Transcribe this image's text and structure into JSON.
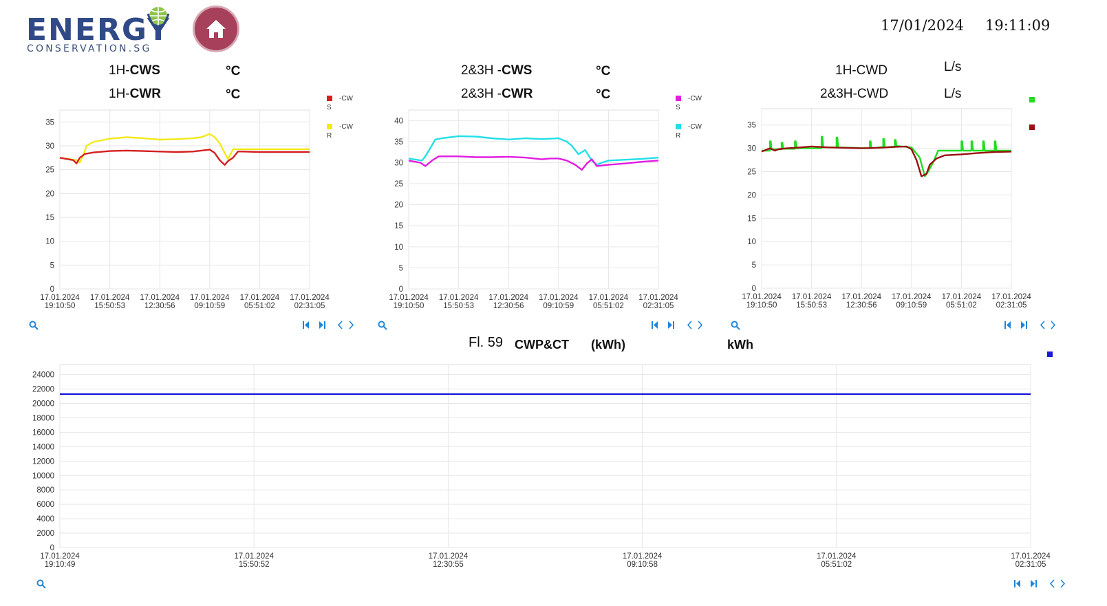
{
  "header": {
    "logo_word": "ENERGY",
    "logo_sub": "CONSERVATION.SG",
    "date": "17/01/2024",
    "time": "19:11:09",
    "icons": {
      "home": "home-icon",
      "globe": "globe-icon"
    }
  },
  "panels": {
    "p1": {
      "title1_prefix": "1H-",
      "title1_bold": "CWS",
      "unit1": "°C",
      "title2_prefix": "1H-",
      "title2_bold": "CWR",
      "unit2": "°C",
      "legend": [
        {
          "label": "-CW",
          "sub": "S",
          "color": "#d42020"
        },
        {
          "label": "-CW",
          "sub": "R",
          "color": "#f2ea1b"
        }
      ]
    },
    "p2": {
      "title1_prefix": "2&3H -",
      "title1_bold": "CWS",
      "unit1": "°C",
      "title2_prefix": "2&3H -",
      "title2_bold": "CWR",
      "unit2": "°C",
      "legend": [
        {
          "label": "-CW",
          "sub": "S",
          "color": "#e21ce2"
        },
        {
          "label": "-CW",
          "sub": "R",
          "color": "#22e0e8"
        }
      ]
    },
    "p3": {
      "title1": "1H-CWD",
      "unit1": "L/s",
      "title2": "2&3H-CWD",
      "unit2": "L/s",
      "legend": [
        {
          "label": "",
          "color": "#22dd22"
        },
        {
          "label": "",
          "color": "#9a1010"
        }
      ]
    },
    "bottom": {
      "title_a": "Fl. 59",
      "title_b": "CWP&CT",
      "title_c": "(kWh)",
      "unit": "kWh",
      "legend": [
        {
          "label": "",
          "color": "#1a1ad8"
        }
      ]
    }
  },
  "controls": {
    "icons": [
      "zoom-icon",
      "first-page-icon",
      "last-page-icon",
      "prev-icon",
      "next-icon"
    ]
  },
  "chart_data": [
    {
      "type": "line",
      "y_ticks": [
        "0",
        "5",
        "10",
        "15",
        "20",
        "25",
        "30",
        "35"
      ],
      "ylim": [
        0,
        37.5
      ],
      "x_ticks": [
        {
          "d": "17.01.2024",
          "t": "19:10:50"
        },
        {
          "d": "17.01.2024",
          "t": "15:50:53"
        },
        {
          "d": "17.01.2024",
          "t": "12:30:56"
        },
        {
          "d": "17.01.2024",
          "t": "09:10:59"
        },
        {
          "d": "17.01.2024",
          "t": "05:51:02"
        },
        {
          "d": "17.01.2024",
          "t": "02:31:05"
        }
      ],
      "x_ticks_value": [
        0,
        3,
        6,
        9,
        12,
        15
      ],
      "x_unit": "hours before 19:10:50",
      "series": [
        {
          "color": "#f2ea1b",
          "x": [
            0,
            1,
            1.2,
            1.4,
            1.6,
            2,
            3,
            4,
            5,
            6,
            7,
            8,
            8.5,
            9,
            9.3,
            9.6,
            9.9,
            10.1,
            10.4,
            11,
            12,
            13,
            14,
            15
          ],
          "values": [
            27.5,
            27,
            26.5,
            28,
            30,
            30.8,
            31.5,
            31.8,
            31.6,
            31.3,
            31.4,
            31.6,
            31.8,
            32.5,
            31.8,
            30.5,
            28.5,
            27.2,
            29.3,
            29.3,
            29.3,
            29.3,
            29.3,
            29.3
          ]
        },
        {
          "color": "#d42020",
          "x": [
            0,
            0.8,
            1,
            1.2,
            1.5,
            2,
            3,
            4,
            5,
            6,
            7,
            8,
            8.5,
            9,
            9.3,
            9.6,
            9.9,
            10.1,
            10.4,
            10.7,
            11,
            12,
            13,
            14,
            15
          ],
          "values": [
            27.5,
            27,
            26.3,
            27.5,
            28.3,
            28.6,
            28.9,
            29,
            28.9,
            28.8,
            28.7,
            28.8,
            29,
            29.2,
            28.5,
            27,
            26,
            26.8,
            27.5,
            28.8,
            28.8,
            28.7,
            28.7,
            28.7,
            28.7
          ]
        }
      ]
    },
    {
      "type": "line",
      "y_ticks": [
        "0",
        "5",
        "10",
        "15",
        "20",
        "25",
        "30",
        "35",
        "40"
      ],
      "ylim": [
        0,
        42.5
      ],
      "x_ticks": [
        {
          "d": "17.01.2024",
          "t": "19:10:50"
        },
        {
          "d": "17.01.2024",
          "t": "15:50:53"
        },
        {
          "d": "17.01.2024",
          "t": "12:30:56"
        },
        {
          "d": "17.01.2024",
          "t": "09:10:59"
        },
        {
          "d": "17.01.2024",
          "t": "05:51:02"
        },
        {
          "d": "17.01.2024",
          "t": "02:31:05"
        }
      ],
      "x_ticks_value": [
        0,
        3,
        6,
        9,
        12,
        15
      ],
      "x_unit": "hours before 19:10:50",
      "series": [
        {
          "color": "#22e0e8",
          "x": [
            0,
            0.8,
            1,
            1.3,
            1.6,
            2,
            3,
            4,
            5,
            6,
            7,
            8,
            9,
            9.5,
            9.8,
            10.2,
            10.6,
            11,
            11.3,
            11.6,
            12,
            13,
            14,
            15
          ],
          "values": [
            31,
            30.5,
            31.5,
            33.5,
            35.5,
            35.8,
            36.3,
            36.2,
            35.8,
            35.5,
            35.8,
            35.6,
            35.8,
            35,
            34,
            32,
            33,
            30.5,
            29.5,
            30,
            30.5,
            30.7,
            30.9,
            31.2
          ]
        },
        {
          "color": "#e21ce2",
          "x": [
            0,
            0.7,
            1,
            1.4,
            1.8,
            2.5,
            3,
            4,
            5,
            6,
            7,
            8,
            8.5,
            9,
            9.5,
            10,
            10.4,
            10.7,
            11,
            11.3,
            12,
            13,
            14,
            15
          ],
          "values": [
            30.5,
            30,
            29.2,
            30.5,
            31.5,
            31.5,
            31.5,
            31.3,
            31.3,
            31.4,
            31.2,
            30.8,
            31,
            31,
            30.5,
            29.5,
            28.3,
            29.8,
            30.8,
            29.2,
            29.5,
            29.8,
            30.2,
            30.5
          ]
        }
      ]
    },
    {
      "type": "line",
      "y_ticks": [
        "0",
        "5",
        "10",
        "15",
        "20",
        "25",
        "30",
        "35"
      ],
      "ylim": [
        0,
        38.5
      ],
      "x_ticks": [
        {
          "d": "17.01.2024",
          "t": "19:10:50"
        },
        {
          "d": "17.01.2024",
          "t": "15:50:53"
        },
        {
          "d": "17.01.2024",
          "t": "12:30:56"
        },
        {
          "d": "17.01.2024",
          "t": "09:10:59"
        },
        {
          "d": "17.01.2024",
          "t": "05:51:02"
        },
        {
          "d": "17.01.2024",
          "t": "02:31:05"
        }
      ],
      "x_ticks_value": [
        0,
        3,
        6,
        9,
        12,
        15
      ],
      "x_unit": "hours before 19:10:50",
      "series": [
        {
          "color": "#22dd22",
          "x": [
            0,
            0.5,
            0.5,
            0.55,
            0.6,
            1.2,
            1.2,
            1.25,
            1.3,
            2,
            2,
            2.05,
            2.1,
            3.6,
            3.6,
            3.65,
            3.7,
            4.5,
            4.5,
            4.55,
            4.6,
            6.5,
            6.5,
            6.55,
            6.6,
            7.3,
            7.3,
            7.35,
            7.4,
            8,
            8,
            8.05,
            8.1,
            9,
            9.5,
            9.8,
            10,
            10.3,
            10.6,
            11,
            11.5,
            12,
            12,
            12.05,
            12.1,
            12.6,
            12.6,
            12.65,
            12.7,
            13.3,
            13.3,
            13.35,
            13.4,
            14,
            14,
            14.05,
            14.1,
            15
          ],
          "values": [
            29.5,
            29.5,
            31.5,
            31.5,
            29.8,
            29.8,
            31.2,
            31.2,
            29.9,
            29.9,
            31.5,
            31.5,
            30,
            30,
            32.5,
            32.5,
            30.2,
            30.2,
            32.3,
            32.3,
            30.2,
            30,
            31.5,
            31.5,
            30,
            30.3,
            32,
            32,
            30.2,
            30.4,
            31.8,
            31.8,
            30.5,
            30.2,
            28,
            24,
            25,
            27,
            29.5,
            29.5,
            29.5,
            29.5,
            31.5,
            31.5,
            29.5,
            29.5,
            31.5,
            31.5,
            29.5,
            29.5,
            31.5,
            31.5,
            29.5,
            29.5,
            31.5,
            31.5,
            29.5,
            29.5
          ]
        },
        {
          "color": "#9a1010",
          "x": [
            0,
            0.5,
            0.8,
            1,
            1.5,
            2,
            3,
            4,
            5,
            6,
            7,
            8,
            8.7,
            9,
            9.3,
            9.6,
            9.9,
            10.1,
            10.5,
            11,
            12,
            13,
            14,
            15
          ],
          "values": [
            29.3,
            30,
            29.5,
            29.8,
            30,
            30.1,
            30.4,
            30.2,
            30.1,
            30,
            30.1,
            30.3,
            30.4,
            29.8,
            27.5,
            24,
            24.5,
            26.5,
            27.8,
            28.5,
            28.7,
            29,
            29.2,
            29.3
          ]
        }
      ]
    },
    {
      "type": "line",
      "y_ticks": [
        "0",
        "2000",
        "4000",
        "6000",
        "8000",
        "10000",
        "12000",
        "14000",
        "16000",
        "18000",
        "20000",
        "22000",
        "24000"
      ],
      "ylim": [
        0,
        25400
      ],
      "x_ticks": [
        {
          "d": "17.01.2024",
          "t": "19:10:49"
        },
        {
          "d": "17.01.2024",
          "t": "15:50:52"
        },
        {
          "d": "17.01.2024",
          "t": "12:30:55"
        },
        {
          "d": "17.01.2024",
          "t": "09:10:58"
        },
        {
          "d": "17.01.2024",
          "t": "05:51:02"
        },
        {
          "d": "17.01.2024",
          "t": "02:31:05"
        }
      ],
      "x_ticks_value": [
        0,
        3,
        6,
        9,
        12,
        15
      ],
      "x_unit": "hours before 19:10:49",
      "series": [
        {
          "color": "#1a1ad8",
          "x": [
            0,
            15
          ],
          "values": [
            21300,
            21300
          ]
        }
      ]
    }
  ]
}
